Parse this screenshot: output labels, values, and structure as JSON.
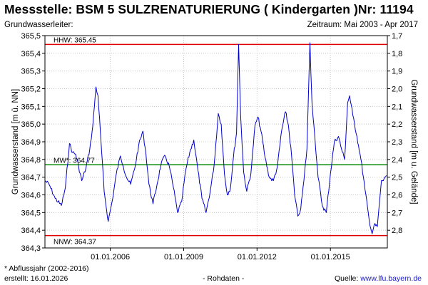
{
  "header": {
    "title": "Messstelle: BSM 5 SULZRENATURIERUNG ( Kindergarten )Nr: 11194",
    "left_sub": "Grundwasserleiter:",
    "right_sub": "Zeitraum: Mai 2003 - Apr 2017"
  },
  "footer": {
    "note": "* Abflussjahr (2002-2016)",
    "created": "erstellt:  16.01.2026",
    "raw": "- Rohdaten -",
    "source_label": "Quelle: ",
    "source_link": "www.lfu.bayern.de"
  },
  "colors": {
    "series": "#0000cc",
    "hhw": "#e00000",
    "nnw": "#e00000",
    "mw": "#008800",
    "grid": "#c8c8c8"
  },
  "chart_data": {
    "type": "line",
    "ylabel": "Grundwasserstand [m ü. NN]",
    "ylabel_right": "Grundwasserstand [m u. Gelände]",
    "ylim": [
      364.3,
      365.5
    ],
    "y_ticks": [
      "364,3",
      "364,4",
      "364,5",
      "364,6",
      "364,7",
      "364,8",
      "364,9",
      "365,0",
      "365,1",
      "365,2",
      "365,3",
      "365,4",
      "365,5"
    ],
    "right_ticks": [
      "2,8",
      "2,7",
      "2,6",
      "2,5",
      "2,4",
      "2,3",
      "2,2",
      "2,1",
      "2,0",
      "1,9",
      "1,8",
      "1,7"
    ],
    "xlim": [
      "2003-05-01",
      "2017-04-30"
    ],
    "x_ticks": [
      {
        "date": "2006-01-01",
        "label": "01.01.2006"
      },
      {
        "date": "2009-01-01",
        "label": "01.01.2009"
      },
      {
        "date": "2012-01-01",
        "label": "01.01.2012"
      },
      {
        "date": "2015-01-01",
        "label": "01.01.2015"
      }
    ],
    "grid": true,
    "reference_lines": [
      {
        "key": "hhw",
        "label": "HHW: 365.45",
        "value": 365.45
      },
      {
        "key": "mw",
        "label": "MW*: 364.77",
        "value": 364.77
      },
      {
        "key": "nnw",
        "label": "NNW: 364.37",
        "value": 364.37
      }
    ],
    "series": [
      {
        "points": [
          [
            "2003-05-01",
            364.68
          ],
          [
            "2003-07-01",
            364.66
          ],
          [
            "2003-10-01",
            364.58
          ],
          [
            "2004-01-01",
            364.54
          ],
          [
            "2004-03-01",
            364.64
          ],
          [
            "2004-05-01",
            364.89
          ],
          [
            "2004-06-15",
            364.84
          ],
          [
            "2004-08-01",
            364.83
          ],
          [
            "2004-09-15",
            364.76
          ],
          [
            "2004-11-01",
            364.68
          ],
          [
            "2005-01-01",
            364.75
          ],
          [
            "2005-03-01",
            364.86
          ],
          [
            "2005-04-15",
            364.99
          ],
          [
            "2005-06-01",
            365.21
          ],
          [
            "2005-07-01",
            365.16
          ],
          [
            "2005-08-15",
            364.9
          ],
          [
            "2005-10-01",
            364.62
          ],
          [
            "2005-12-01",
            364.45
          ],
          [
            "2006-02-01",
            364.57
          ],
          [
            "2006-04-01",
            364.72
          ],
          [
            "2006-06-01",
            364.82
          ],
          [
            "2006-07-15",
            364.76
          ],
          [
            "2006-09-01",
            364.7
          ],
          [
            "2006-11-01",
            364.66
          ],
          [
            "2007-01-01",
            364.75
          ],
          [
            "2007-03-01",
            364.88
          ],
          [
            "2007-05-01",
            364.96
          ],
          [
            "2007-06-15",
            364.84
          ],
          [
            "2007-08-01",
            364.66
          ],
          [
            "2007-10-01",
            364.55
          ],
          [
            "2007-12-01",
            364.66
          ],
          [
            "2008-02-01",
            364.78
          ],
          [
            "2008-04-01",
            364.82
          ],
          [
            "2008-06-01",
            364.76
          ],
          [
            "2008-08-01",
            364.64
          ],
          [
            "2008-10-01",
            364.5
          ],
          [
            "2008-12-01",
            364.56
          ],
          [
            "2009-02-01",
            364.74
          ],
          [
            "2009-04-01",
            364.84
          ],
          [
            "2009-06-01",
            364.91
          ],
          [
            "2009-08-01",
            364.74
          ],
          [
            "2009-10-01",
            364.58
          ],
          [
            "2009-12-01",
            364.5
          ],
          [
            "2010-02-01",
            364.62
          ],
          [
            "2010-04-01",
            364.77
          ],
          [
            "2010-06-01",
            365.06
          ],
          [
            "2010-07-15",
            365.0
          ],
          [
            "2010-09-01",
            364.72
          ],
          [
            "2010-10-15",
            364.6
          ],
          [
            "2010-12-01",
            364.64
          ],
          [
            "2011-01-15",
            364.82
          ],
          [
            "2011-03-01",
            364.95
          ],
          [
            "2011-04-01",
            365.45
          ],
          [
            "2011-05-01",
            365.05
          ],
          [
            "2011-06-15",
            364.73
          ],
          [
            "2011-08-01",
            364.62
          ],
          [
            "2011-10-01",
            364.72
          ],
          [
            "2011-12-01",
            364.99
          ],
          [
            "2012-01-15",
            365.04
          ],
          [
            "2012-03-01",
            364.96
          ],
          [
            "2012-05-01",
            364.81
          ],
          [
            "2012-07-01",
            364.7
          ],
          [
            "2012-09-01",
            364.68
          ],
          [
            "2012-11-01",
            364.76
          ],
          [
            "2013-01-01",
            364.96
          ],
          [
            "2013-03-01",
            365.07
          ],
          [
            "2013-04-15",
            364.99
          ],
          [
            "2013-06-01",
            364.82
          ],
          [
            "2013-07-15",
            364.6
          ],
          [
            "2013-09-01",
            364.48
          ],
          [
            "2013-10-15",
            364.52
          ],
          [
            "2013-12-01",
            364.68
          ],
          [
            "2014-01-15",
            364.86
          ],
          [
            "2014-03-01",
            365.46
          ],
          [
            "2014-04-01",
            365.12
          ],
          [
            "2014-05-15",
            364.92
          ],
          [
            "2014-07-01",
            364.7
          ],
          [
            "2014-09-01",
            364.54
          ],
          [
            "2014-11-01",
            364.5
          ],
          [
            "2015-01-01",
            364.72
          ],
          [
            "2015-03-01",
            364.9
          ],
          [
            "2015-05-01",
            364.93
          ],
          [
            "2015-06-15",
            364.86
          ],
          [
            "2015-08-01",
            364.8
          ],
          [
            "2015-09-15",
            365.12
          ],
          [
            "2015-10-15",
            365.16
          ],
          [
            "2015-12-01",
            365.05
          ],
          [
            "2016-02-01",
            364.93
          ],
          [
            "2016-04-01",
            364.8
          ],
          [
            "2016-06-01",
            364.63
          ],
          [
            "2016-08-01",
            364.46
          ],
          [
            "2016-09-15",
            364.38
          ],
          [
            "2016-10-15",
            364.43
          ],
          [
            "2016-12-01",
            364.42
          ],
          [
            "2017-02-01",
            364.68
          ],
          [
            "2017-03-01",
            364.68
          ],
          [
            "2017-04-15",
            364.71
          ]
        ]
      }
    ]
  }
}
